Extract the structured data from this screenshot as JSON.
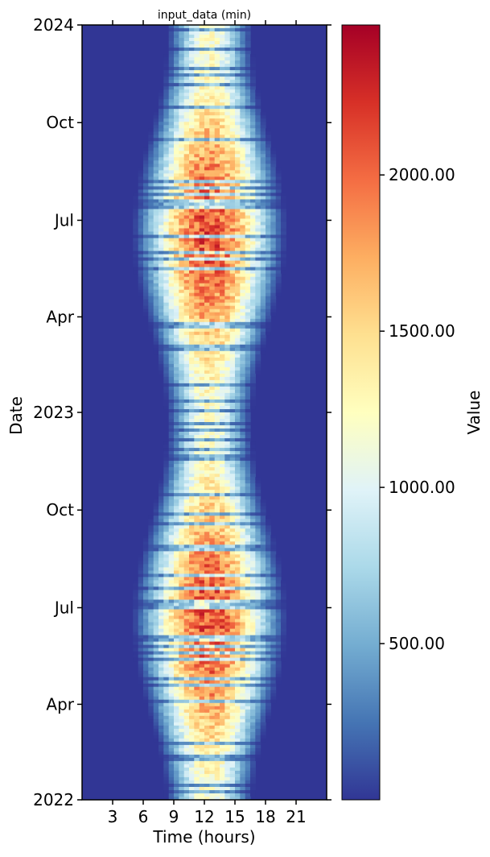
{
  "chart_data": {
    "type": "heatmap",
    "title": "input_data (min)",
    "xlabel": "Time (hours)",
    "ylabel": "Date",
    "x_ticks": [
      "3",
      "6",
      "9",
      "12",
      "15",
      "18",
      "21"
    ],
    "x_tick_values": [
      3,
      6,
      9,
      12,
      15,
      18,
      21
    ],
    "xlim": [
      0,
      24
    ],
    "y_ticks": [
      {
        "label": "2024",
        "date": "2024-01-01"
      },
      {
        "label": "Oct",
        "date": "2023-10-01"
      },
      {
        "label": "Jul",
        "date": "2023-07-01"
      },
      {
        "label": "Apr",
        "date": "2023-04-01"
      },
      {
        "label": "2023",
        "date": "2023-01-01"
      },
      {
        "label": "Oct",
        "date": "2022-10-01"
      },
      {
        "label": "Jul",
        "date": "2022-07-01"
      },
      {
        "label": "Apr",
        "date": "2022-04-01"
      },
      {
        "label": "2022",
        "date": "2022-01-01"
      }
    ],
    "ylim": [
      "2022-01-01",
      "2024-01-01"
    ],
    "colorbar": {
      "label": "Value",
      "ticks": [
        "500.00",
        "1000.00",
        "1500.00",
        "2000.00"
      ],
      "tick_values": [
        500,
        1000,
        1500,
        2000
      ],
      "range": [
        0,
        2480
      ],
      "colormap": "RdYlBu_r"
    },
    "pattern": {
      "description_values": {
        "daylight_peak_summer": 2100,
        "daylight_peak_winter": 1200,
        "night_value": 0
      }
    }
  },
  "colors": {
    "low": "#313695",
    "high": "#a50026"
  }
}
